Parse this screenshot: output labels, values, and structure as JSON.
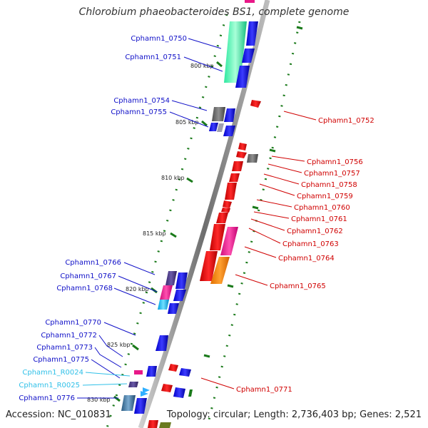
{
  "title": "Chlorobium phaeobacteroides BS1, complete genome",
  "footer": {
    "accession": "Accession: NC_010831",
    "stats": "Topology: circular; Length: 2,736,403 bp; Genes: 2,521"
  },
  "colors": {
    "label_left": "#1010c8",
    "label_rna": "#30c0e8",
    "label_right": "#d00000",
    "axis": "#8a8a8a",
    "tick_green": "#1a7a1a"
  },
  "scale_labels": [
    {
      "text": "800 kbp"
    },
    {
      "text": "805 kbp"
    },
    {
      "text": "810 kbp"
    },
    {
      "text": "815 kbp"
    },
    {
      "text": "820 kbp"
    },
    {
      "text": "825 kbp"
    },
    {
      "text": "830 kbp"
    }
  ],
  "left_labels": [
    {
      "text": "Cphamn1_0750",
      "kind": "gene"
    },
    {
      "text": "Cphamn1_0751",
      "kind": "gene"
    },
    {
      "text": "Cphamn1_0754",
      "kind": "gene"
    },
    {
      "text": "Cphamn1_0755",
      "kind": "gene"
    },
    {
      "text": "Cphamn1_0766",
      "kind": "gene"
    },
    {
      "text": "Cphamn1_0767",
      "kind": "gene"
    },
    {
      "text": "Cphamn1_0768",
      "kind": "gene"
    },
    {
      "text": "Cphamn1_0770",
      "kind": "gene"
    },
    {
      "text": "Cphamn1_0772",
      "kind": "gene"
    },
    {
      "text": "Cphamn1_0773",
      "kind": "gene"
    },
    {
      "text": "Cphamn1_0775",
      "kind": "gene"
    },
    {
      "text": "Cphamn1_R0024",
      "kind": "rna"
    },
    {
      "text": "Cphamn1_R0025",
      "kind": "rna"
    },
    {
      "text": "Cphamn1_0776",
      "kind": "gene"
    }
  ],
  "right_labels": [
    {
      "text": "Cphamn1_0752"
    },
    {
      "text": "Cphamn1_0756"
    },
    {
      "text": "Cphamn1_0757"
    },
    {
      "text": "Cphamn1_0758"
    },
    {
      "text": "Cphamn1_0759"
    },
    {
      "text": "Cphamn1_0760"
    },
    {
      "text": "Cphamn1_0761"
    },
    {
      "text": "Cphamn1_0762"
    },
    {
      "text": "Cphamn1_0763"
    },
    {
      "text": "Cphamn1_0764"
    },
    {
      "text": "Cphamn1_0765"
    },
    {
      "text": "Cphamn1_0771"
    }
  ]
}
